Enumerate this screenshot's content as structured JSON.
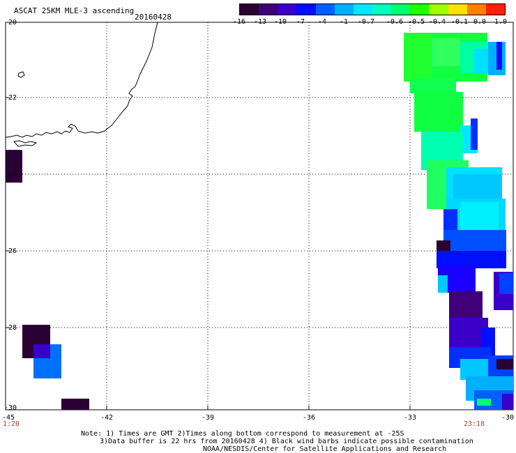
{
  "header": {
    "title": "ASCAT 25KM MLE-3 ascending",
    "date": "20160428"
  },
  "colorbar": {
    "ticks": [
      "-16",
      "-13",
      "-10",
      "-7",
      "-4",
      "-1",
      "-0.7",
      "-0.6",
      "-0.5",
      "-0.4",
      "-0.1",
      "0.0",
      "1.0"
    ],
    "colors": [
      "#2b0033",
      "#40007a",
      "#3a00c8",
      "#0010ff",
      "#0060ff",
      "#00b0ff",
      "#00e8ff",
      "#00ffc0",
      "#00ff70",
      "#20ff00",
      "#a0ff00",
      "#ffe000",
      "#ff8000",
      "#ff2000"
    ]
  },
  "axes": {
    "y_labels": [
      "-20",
      "-22",
      "-24",
      "-26",
      "-28",
      "-30"
    ],
    "x_labels": [
      "-45",
      "-42",
      "-39",
      "-36",
      "-33",
      "-30"
    ]
  },
  "times": {
    "left": "1:20",
    "right": "23:18"
  },
  "notes": {
    "line1": "Note: 1) Times are GMT 2)Times along bottom correspond to measurement at -25S",
    "line2": "3)Data buffer is 22 hrs from 20160428 4) Black wind barbs indicate possible contamination",
    "line3": "NOAA/NESDIS/Center for Satellite Applications and Research"
  }
}
